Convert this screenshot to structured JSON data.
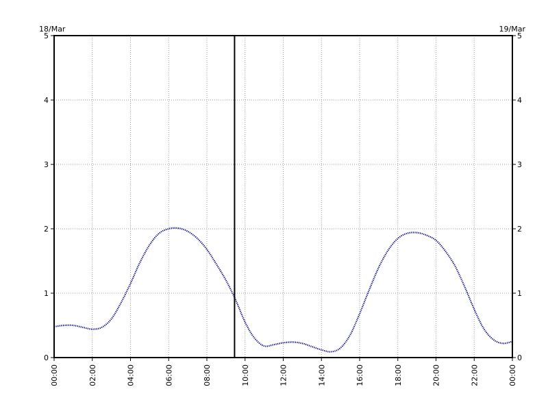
{
  "chart_data": {
    "type": "line",
    "title": "",
    "xlabel": "",
    "ylabel": "",
    "start_date_label": "18/Mar",
    "end_date_label": "19/Mar",
    "x_tick_labels": [
      "00:00",
      "02:00",
      "04:00",
      "06:00",
      "08:00",
      "10:00",
      "12:00",
      "14:00",
      "16:00",
      "18:00",
      "20:00",
      "22:00",
      "00:00"
    ],
    "y_tick_labels": [
      "0",
      "1",
      "2",
      "3",
      "4",
      "5"
    ],
    "xlim": [
      0,
      24
    ],
    "ylim": [
      0,
      5
    ],
    "grid": true,
    "current_time_marker_hours": 9.45,
    "series": [
      {
        "color": "#00008b",
        "line_style": "dotted",
        "x": [
          0,
          0.5,
          1,
          1.5,
          2,
          2.5,
          3,
          3.5,
          4,
          4.5,
          5,
          5.5,
          6,
          6.5,
          7,
          7.5,
          8,
          8.5,
          9,
          9.5,
          10,
          10.5,
          11,
          11.5,
          12,
          12.5,
          13,
          13.5,
          14,
          14.5,
          15,
          15.5,
          16,
          16.5,
          17,
          17.5,
          18,
          18.5,
          19,
          19.5,
          20,
          20.5,
          21,
          21.5,
          22,
          22.5,
          23,
          23.5,
          24
        ],
        "y": [
          0.48,
          0.5,
          0.5,
          0.47,
          0.44,
          0.47,
          0.6,
          0.85,
          1.15,
          1.48,
          1.75,
          1.93,
          2.0,
          2.01,
          1.96,
          1.85,
          1.68,
          1.45,
          1.2,
          0.9,
          0.55,
          0.3,
          0.18,
          0.2,
          0.23,
          0.24,
          0.22,
          0.17,
          0.12,
          0.09,
          0.15,
          0.35,
          0.68,
          1.05,
          1.4,
          1.67,
          1.85,
          1.93,
          1.94,
          1.9,
          1.82,
          1.65,
          1.42,
          1.1,
          0.75,
          0.45,
          0.28,
          0.22,
          0.25
        ]
      }
    ]
  },
  "colors": {
    "line": "#00008b",
    "axis": "#000000",
    "grid": "#999999",
    "background": "#ffffff"
  }
}
